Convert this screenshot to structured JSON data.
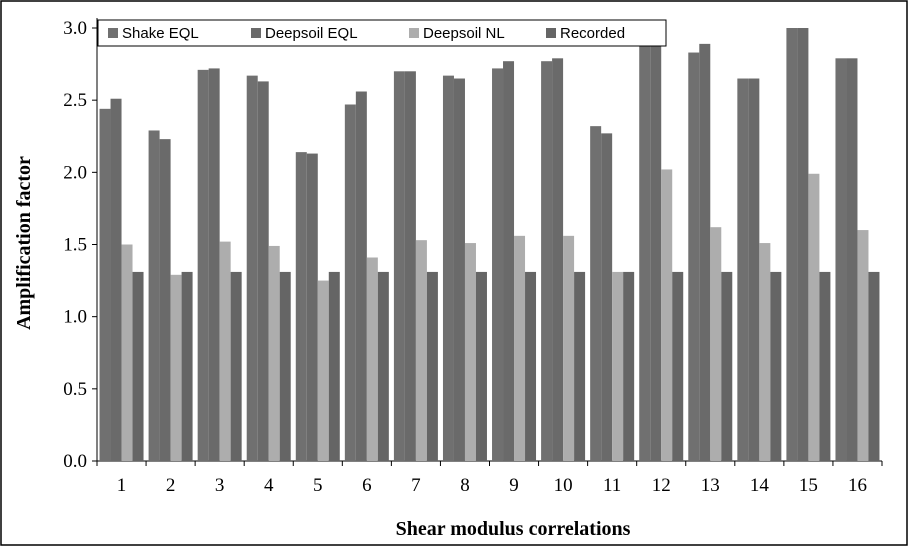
{
  "chart_data": {
    "type": "bar",
    "title": "",
    "xlabel": "Shear modulus correlations",
    "ylabel": "Amplification factor",
    "ylim": [
      0,
      3.0
    ],
    "yticks": [
      "0.0",
      "0.5",
      "1.0",
      "1.5",
      "2.0",
      "2.5",
      "3.0"
    ],
    "grid": false,
    "legend_position": "top",
    "categories": [
      "1",
      "2",
      "3",
      "4",
      "5",
      "6",
      "7",
      "8",
      "9",
      "10",
      "11",
      "12",
      "13",
      "14",
      "15",
      "16"
    ],
    "series": [
      {
        "name": "Shake EQL",
        "color": "#707070",
        "values": [
          2.44,
          2.29,
          2.71,
          2.67,
          2.14,
          2.47,
          2.7,
          2.67,
          2.72,
          2.77,
          2.32,
          3.0,
          2.83,
          2.65,
          3.0,
          2.79
        ]
      },
      {
        "name": "Deepsoil EQL",
        "color": "#6a6a6a",
        "values": [
          2.51,
          2.23,
          2.72,
          2.63,
          2.13,
          2.56,
          2.7,
          2.65,
          2.77,
          2.79,
          2.27,
          3.0,
          2.89,
          2.65,
          3.0,
          2.79
        ]
      },
      {
        "name": "Deepsoil NL",
        "color": "#adadad",
        "values": [
          1.5,
          1.29,
          1.52,
          1.49,
          1.25,
          1.41,
          1.53,
          1.51,
          1.56,
          1.56,
          1.31,
          2.02,
          1.62,
          1.51,
          1.99,
          1.6
        ]
      },
      {
        "name": "Recorded",
        "color": "#656565",
        "values": [
          1.31,
          1.31,
          1.31,
          1.31,
          1.31,
          1.31,
          1.31,
          1.31,
          1.31,
          1.31,
          1.31,
          1.31,
          1.31,
          1.31,
          1.31,
          1.31
        ]
      }
    ]
  }
}
